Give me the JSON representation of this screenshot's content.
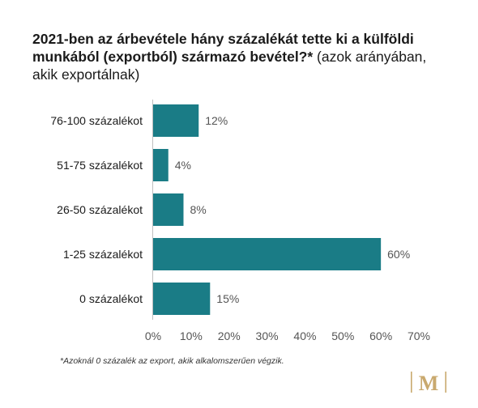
{
  "title": {
    "bold": "2021-ben az árbevétele hány százalékát tette ki a külföldi munkából (exportból) származó bevétel?*",
    "normal": " (azok arányában, akik exportálnak)"
  },
  "chart_data": {
    "type": "bar",
    "orientation": "horizontal",
    "categories": [
      "76-100 százalékot",
      "51-75 százalékot",
      "26-50 százalékot",
      "1-25 százalékot",
      "0 százalékot"
    ],
    "values": [
      12,
      4,
      8,
      60,
      15
    ],
    "value_labels": [
      "12%",
      "4%",
      "8%",
      "60%",
      "15%"
    ],
    "xlim": [
      0,
      70
    ],
    "xticks": [
      "0%",
      "10%",
      "20%",
      "30%",
      "40%",
      "50%",
      "60%",
      "70%"
    ],
    "grid": false,
    "bar_color": "#1a7c86"
  },
  "footnote": "*Azoknál 0 százalék az export, akik alkalomszerűen végzik.",
  "logo": {
    "letter": "M",
    "color": "#c9a96e"
  }
}
